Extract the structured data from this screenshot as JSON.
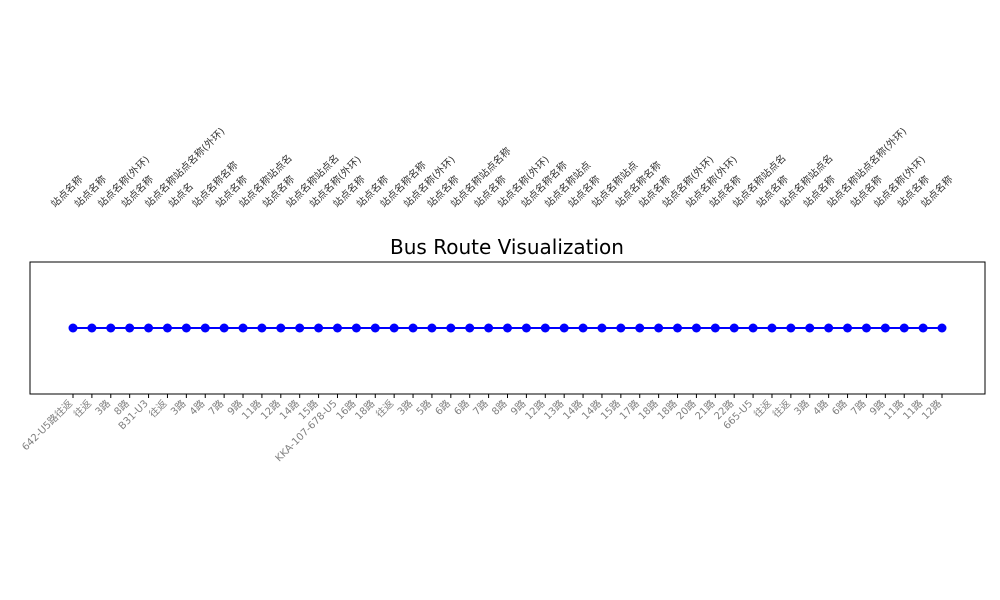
{
  "chart_data": {
    "type": "line",
    "title": "Bus Route Visualization",
    "xlabel": "",
    "ylabel": "",
    "y_axis_visible": false,
    "grid": false,
    "colors": {
      "line": "#0000ff",
      "marker": "#0000ff",
      "frame": "#000000",
      "tick_label": "#808080",
      "stop_label": "#333333"
    },
    "x_tick_labels": [
      "642-U5路往返",
      "往返",
      "3路",
      "8路",
      "B31-U3",
      "往返",
      "3路",
      "4路",
      "7路",
      "9路",
      "11路",
      "12路",
      "14路",
      "15路",
      "KKA-107-678-U5",
      "16路",
      "18路",
      "往返",
      "3路",
      "5路",
      "6路",
      "6路",
      "7路",
      "8路",
      "9路",
      "12路",
      "13路",
      "14路",
      "14路",
      "15路",
      "17路",
      "18路",
      "18路",
      "20路",
      "21路",
      "22路",
      "665-U5",
      "往返",
      "往返",
      "3路",
      "4路",
      "6路",
      "7路",
      "9路",
      "11路",
      "11路",
      "12路"
    ],
    "stop_labels": [
      "站点名称",
      "站点名称",
      "站点名称(外环)",
      "站点名称",
      "站点名称站点名称(外环)",
      "站点名",
      "站点名称名称",
      "站点名称",
      "站点名称站点名",
      "站点名称",
      "站点名称站点名",
      "站点名称(外环)",
      "站点名称",
      "站点名称",
      "站点名称名称",
      "站点名称(外环)",
      "站点名称",
      "站点名称站点名称",
      "站点名称",
      "站点名称(外环)",
      "站点名称名称",
      "站点名称站点",
      "站点名称",
      "站点名称站点",
      "站点名称名称",
      "站点名称",
      "站点名称(外环)",
      "站点名称(外环)",
      "站点名称",
      "站点名称站点名",
      "站点名称",
      "站点名称站点名",
      "站点名称",
      "站点名称站点名称(外环)",
      "站点名称",
      "站点名称(外环)",
      "站点名称",
      "站点名称"
    ],
    "points": [
      {
        "x": 0,
        "y": 0
      },
      {
        "x": 1,
        "y": 0
      },
      {
        "x": 2,
        "y": 0
      },
      {
        "x": 3,
        "y": 0
      },
      {
        "x": 4,
        "y": 0
      },
      {
        "x": 5,
        "y": 0
      },
      {
        "x": 6,
        "y": 0
      },
      {
        "x": 7,
        "y": 0
      },
      {
        "x": 8,
        "y": 0
      },
      {
        "x": 9,
        "y": 0
      },
      {
        "x": 10,
        "y": 0
      },
      {
        "x": 11,
        "y": 0
      },
      {
        "x": 12,
        "y": 0
      },
      {
        "x": 13,
        "y": 0
      },
      {
        "x": 14,
        "y": 0
      },
      {
        "x": 15,
        "y": 0
      },
      {
        "x": 16,
        "y": 0
      },
      {
        "x": 17,
        "y": 0
      },
      {
        "x": 18,
        "y": 0
      },
      {
        "x": 19,
        "y": 0
      },
      {
        "x": 20,
        "y": 0
      },
      {
        "x": 21,
        "y": 0
      },
      {
        "x": 22,
        "y": 0
      },
      {
        "x": 23,
        "y": 0
      },
      {
        "x": 24,
        "y": 0
      },
      {
        "x": 25,
        "y": 0
      },
      {
        "x": 26,
        "y": 0
      },
      {
        "x": 27,
        "y": 0
      },
      {
        "x": 28,
        "y": 0
      },
      {
        "x": 29,
        "y": 0
      },
      {
        "x": 30,
        "y": 0
      },
      {
        "x": 31,
        "y": 0
      },
      {
        "x": 32,
        "y": 0
      },
      {
        "x": 33,
        "y": 0
      },
      {
        "x": 34,
        "y": 0
      },
      {
        "x": 35,
        "y": 0
      },
      {
        "x": 36,
        "y": 0
      },
      {
        "x": 37,
        "y": 0
      },
      {
        "x": 38,
        "y": 0
      },
      {
        "x": 39,
        "y": 0
      },
      {
        "x": 40,
        "y": 0
      },
      {
        "x": 41,
        "y": 0
      },
      {
        "x": 42,
        "y": 0
      },
      {
        "x": 43,
        "y": 0
      },
      {
        "x": 44,
        "y": 0
      },
      {
        "x": 45,
        "y": 0
      },
      {
        "x": 46,
        "y": 0
      }
    ]
  }
}
